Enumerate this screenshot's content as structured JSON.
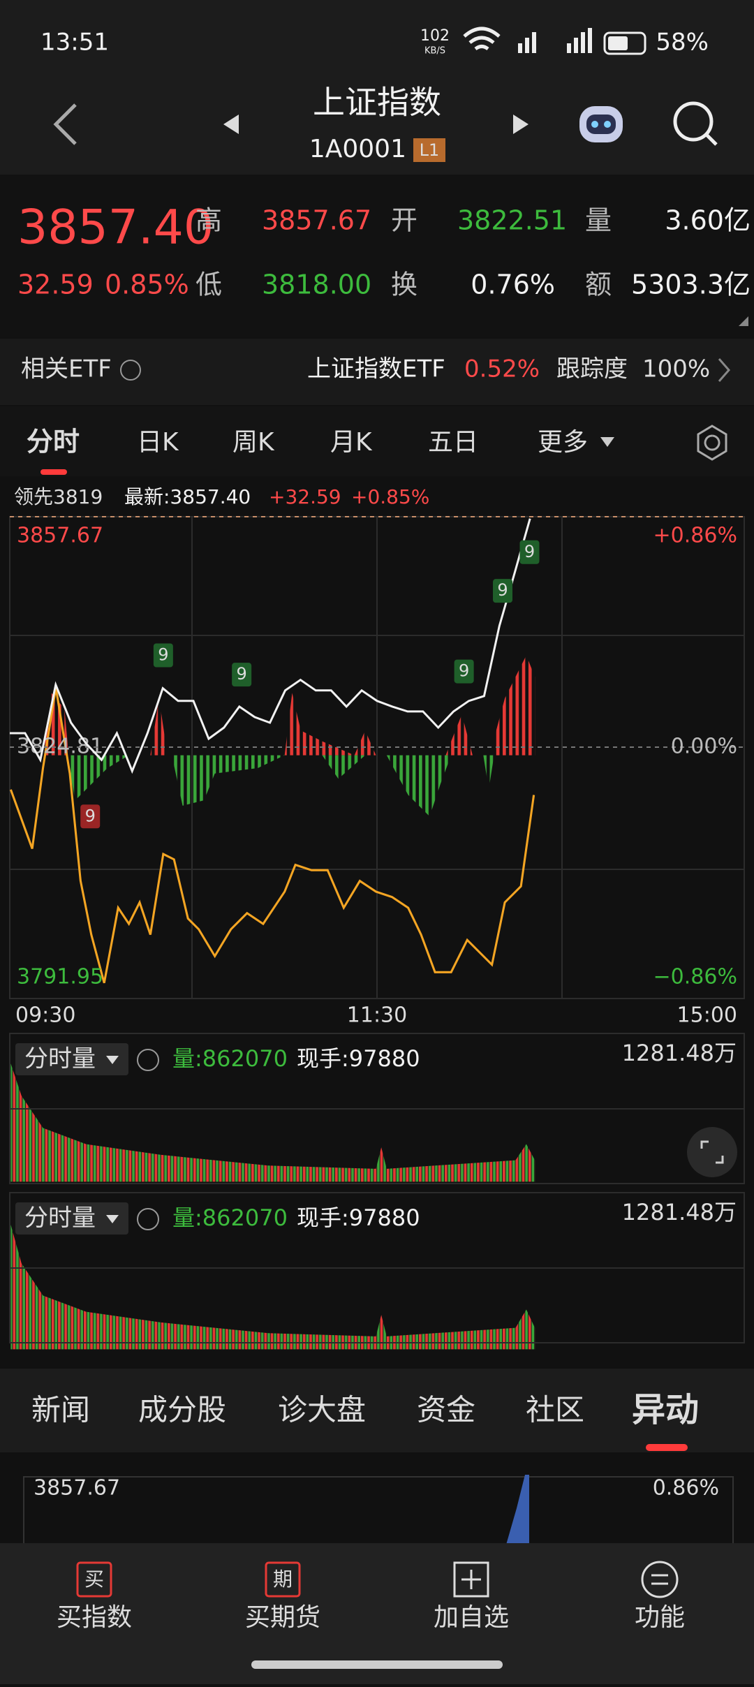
{
  "status_bar": {
    "time": "13:51",
    "speed": "102",
    "speed_unit": "KB/S",
    "battery": "58%"
  },
  "header": {
    "title": "上证指数",
    "code": "1A0001",
    "level": "L1"
  },
  "quote": {
    "price": "3857.40",
    "change": "32.59",
    "change_pct": "0.85%",
    "fields": [
      {
        "label": "高",
        "value": "3857.67"
      },
      {
        "label": "开",
        "value": "3822.51"
      },
      {
        "label": "量",
        "value": "3.60亿"
      },
      {
        "label": "低",
        "value": "3818.00"
      },
      {
        "label": "换",
        "value": "0.76%"
      },
      {
        "label": "额",
        "value": "5303.3亿"
      }
    ]
  },
  "etf": {
    "label": "相关ETF",
    "name": "上证指数ETF",
    "change": "0.52%",
    "tracking_label": "跟踪度",
    "tracking": "100%"
  },
  "tabs": [
    "分时",
    "日K",
    "周K",
    "月K",
    "五日",
    "更多"
  ],
  "info": {
    "lead": "领先3819",
    "latest": "最新:3857.40",
    "change": "+32.59",
    "pct": "+0.85%"
  },
  "chart_data": {
    "type": "line",
    "xlim": [
      0,
      240
    ],
    "xticks": [
      {
        "value": 0,
        "label": "09:30"
      },
      {
        "value": 120,
        "label": "11:30"
      },
      {
        "value": 240,
        "label": "15:00"
      }
    ],
    "ylim": [
      3791.95,
      3857.67
    ],
    "yticks": [
      3791.95,
      3824.81,
      3857.67
    ],
    "y2lim": [
      -0.86,
      0.86
    ],
    "y2ticks": [
      {
        "value": -0.86,
        "label": "−0.86%"
      },
      {
        "value": 0,
        "label": "0.00%"
      },
      {
        "value": 0.86,
        "label": "+0.86%"
      }
    ],
    "series": [
      {
        "name": "最新",
        "color": "#f2f2f2",
        "x": [
          0,
          5,
          10,
          15,
          20,
          25,
          30,
          35,
          40,
          45,
          50,
          55,
          60,
          65,
          70,
          75,
          80,
          85,
          90,
          95,
          100,
          105,
          110,
          115,
          120,
          125,
          130,
          135,
          140,
          145,
          150,
          155,
          160,
          165,
          170
        ],
        "values": [
          3826.8,
          3826.8,
          3823.0,
          3833.7,
          3828.3,
          3825.3,
          3823.0,
          3826.8,
          3821.4,
          3826.8,
          3833.2,
          3831.4,
          3831.4,
          3826.0,
          3827.6,
          3830.6,
          3829.1,
          3828.3,
          3832.9,
          3834.4,
          3832.9,
          3832.9,
          3830.6,
          3832.9,
          3831.4,
          3830.6,
          3829.9,
          3829.9,
          3827.6,
          3829.9,
          3831.4,
          3832.1,
          3842.1,
          3849.7,
          3857.4
        ]
      }
    ],
    "markers": [
      "9",
      "9",
      "9",
      "9",
      "9",
      "9"
    ]
  },
  "volume_panels": [
    {
      "label": "分时量",
      "volume": "量:862070",
      "hand": "现手:97880",
      "max": "1281.48万"
    },
    {
      "label": "分时量",
      "volume": "量:862070",
      "hand": "现手:97880",
      "max": "1281.48万"
    }
  ],
  "bottom_tabs": [
    "新闻",
    "成分股",
    "诊大盘",
    "资金",
    "社区",
    "异动"
  ],
  "mini_chart": {
    "high": "3857.67",
    "pct": "0.86%"
  },
  "nav": [
    {
      "icon": "买",
      "label": "买指数"
    },
    {
      "icon": "期",
      "label": "买期货"
    },
    {
      "label": "加自选"
    },
    {
      "label": "功能"
    }
  ]
}
